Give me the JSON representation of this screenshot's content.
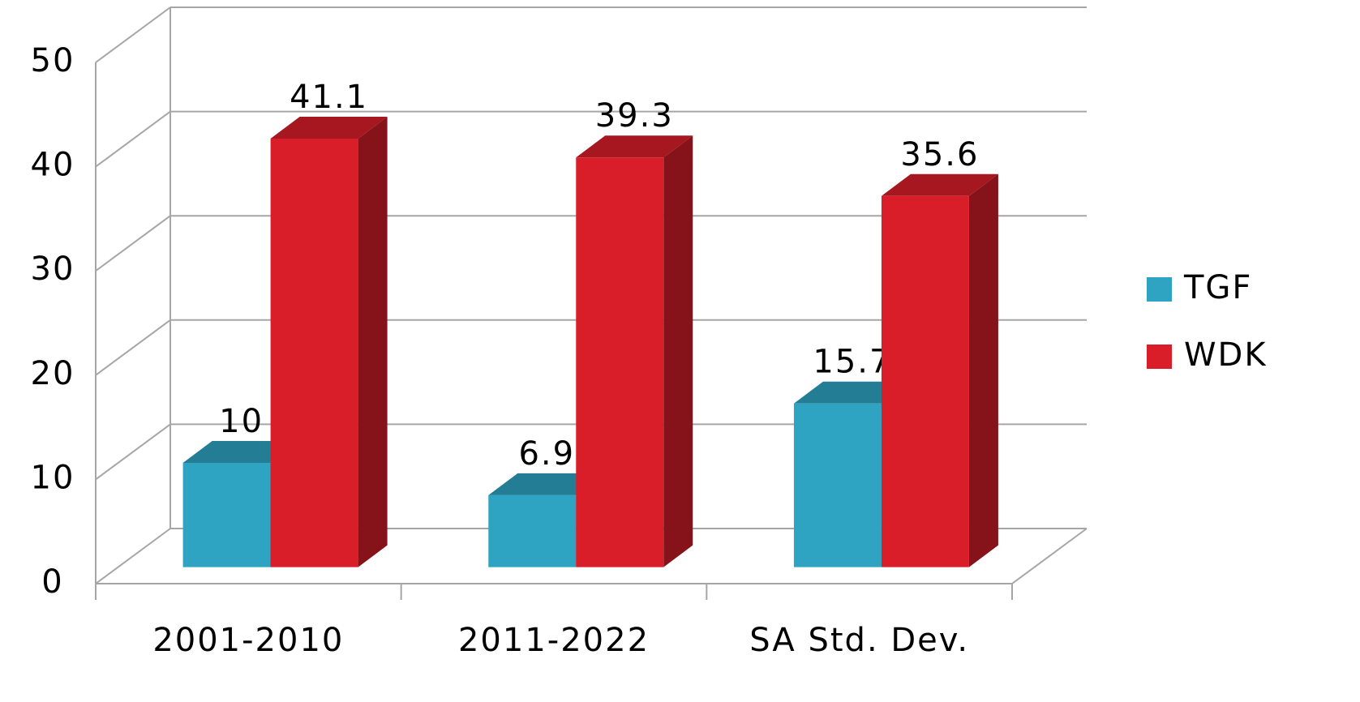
{
  "chart_data": {
    "type": "bar3d",
    "categories": [
      "2001-2010",
      "2011-2022",
      "SA Std. Dev."
    ],
    "series": [
      {
        "name": "TGF",
        "color": "#2ea3c2",
        "values": [
          10,
          6.9,
          15.7
        ]
      },
      {
        "name": "WDK",
        "color": "#d91e2a",
        "values": [
          41.1,
          39.3,
          35.6
        ]
      }
    ],
    "ylim": [
      0,
      50
    ],
    "yticks": [
      0,
      10,
      20,
      30,
      40,
      50
    ],
    "grid": true,
    "legend": "right"
  }
}
